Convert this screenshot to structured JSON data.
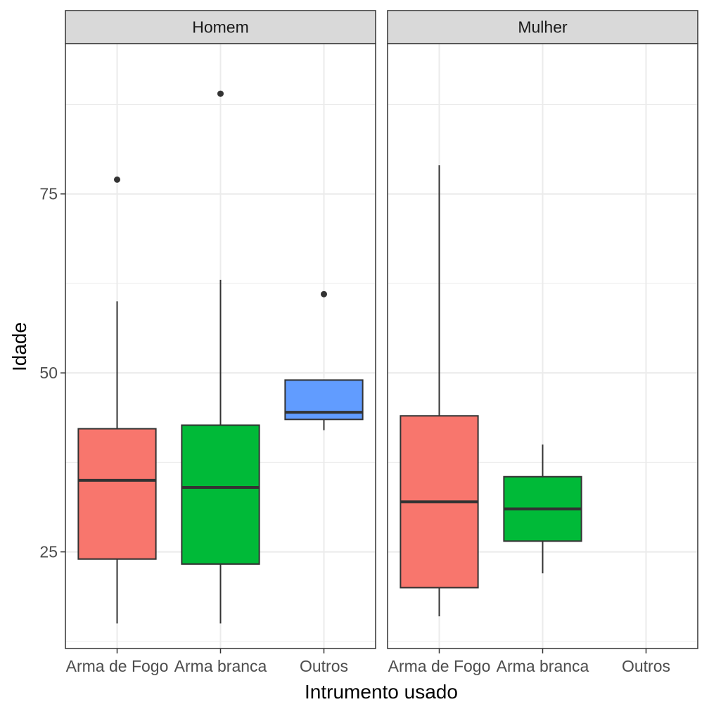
{
  "chart_data": {
    "type": "boxplot",
    "xlabel": "Intrumento usado",
    "ylabel": "Idade",
    "ylim": [
      11.5,
      96
    ],
    "yticks": [
      25,
      50,
      75
    ],
    "categories": [
      "Arma de Fogo",
      "Arma branca",
      "Outros"
    ],
    "colors": {
      "Arma de Fogo": "#F8766D",
      "Arma branca": "#00BA38",
      "Outros": "#619CFF"
    },
    "grid": true,
    "legend": "none",
    "facets": [
      {
        "label": "Homem",
        "boxes": [
          {
            "category": "Arma de Fogo",
            "whisker_low": 15,
            "q1": 24,
            "median": 35,
            "q3": 42.2,
            "whisker_high": 60,
            "outliers": [
              77
            ]
          },
          {
            "category": "Arma branca",
            "whisker_low": 15,
            "q1": 23.3,
            "median": 34,
            "q3": 42.7,
            "whisker_high": 63,
            "outliers": [
              89
            ]
          },
          {
            "category": "Outros",
            "whisker_low": 42,
            "q1": 43.5,
            "median": 44.5,
            "q3": 49,
            "whisker_high": 49,
            "outliers": [
              61
            ]
          }
        ]
      },
      {
        "label": "Mulher",
        "boxes": [
          {
            "category": "Arma de Fogo",
            "whisker_low": 16,
            "q1": 20,
            "median": 32,
            "q3": 44,
            "whisker_high": 79,
            "outliers": []
          },
          {
            "category": "Arma branca",
            "whisker_low": 22,
            "q1": 26.5,
            "median": 31,
            "q3": 35.5,
            "whisker_high": 40,
            "outliers": []
          }
        ]
      }
    ]
  }
}
